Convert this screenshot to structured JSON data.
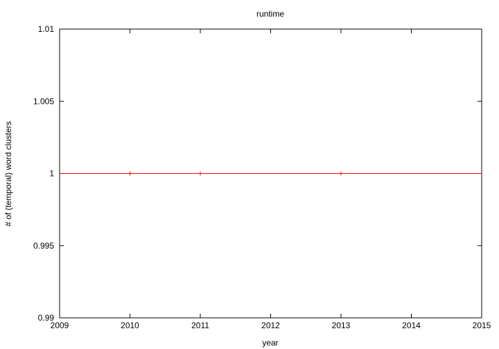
{
  "chart_data": {
    "type": "line",
    "title": "runtime",
    "xlabel": "year",
    "ylabel": "# of (temporal) word clusters",
    "xlim": [
      2009,
      2015
    ],
    "ylim": [
      0.99,
      1.01
    ],
    "x_ticks": [
      "2009",
      "2010",
      "2011",
      "2012",
      "2013",
      "2014",
      "2015"
    ],
    "y_ticks": [
      "0.99",
      "0.995",
      "1",
      "1.005",
      "1.01"
    ],
    "grid": false,
    "series": [
      {
        "color": "#ff0000",
        "points": [
          {
            "x": 2009,
            "y": 1
          },
          {
            "x": 2010,
            "y": 1
          },
          {
            "x": 2011,
            "y": 1
          },
          {
            "x": 2013,
            "y": 1
          },
          {
            "x": 2015,
            "y": 1
          }
        ],
        "marker_x": [
          2010,
          2011,
          2013
        ]
      }
    ]
  }
}
